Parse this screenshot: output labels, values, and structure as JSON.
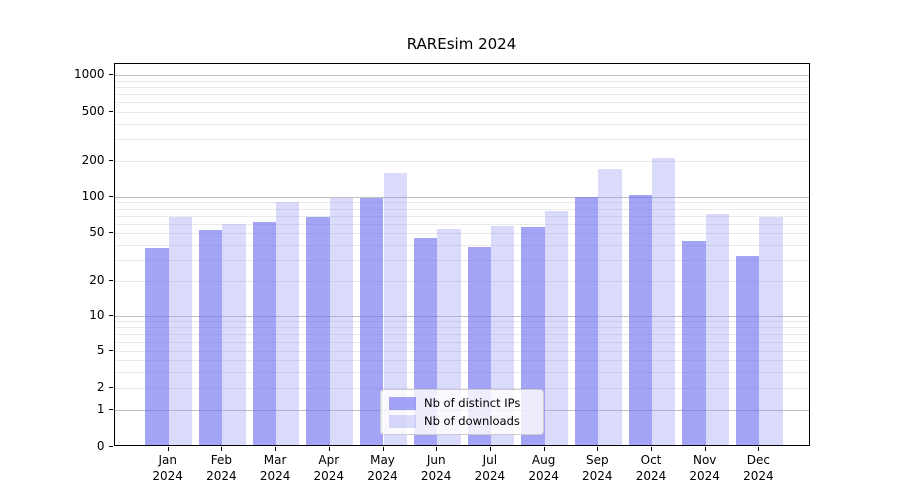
{
  "title": "RAREsim 2024",
  "chart_data": {
    "type": "bar",
    "title": "RAREsim 2024",
    "categories": [
      "Jan",
      "Feb",
      "Mar",
      "Apr",
      "May",
      "Jun",
      "Jul",
      "Aug",
      "Sep",
      "Oct",
      "Nov",
      "Dec"
    ],
    "category_year": "2024",
    "series": [
      {
        "name": "Nb of distinct IPs",
        "values": [
          36,
          51,
          59,
          66,
          94,
          44,
          37,
          54,
          97,
          100,
          41,
          31
        ],
        "color": "#6c6cf0",
        "alpha": 0.62
      },
      {
        "name": "Nb of downloads",
        "values": [
          66,
          57,
          87,
          95,
          153,
          52,
          55,
          73,
          165,
          205,
          69,
          66
        ],
        "color": "#9696f0",
        "alpha": 0.35
      }
    ],
    "yscale": "symlog",
    "yticks": [
      0,
      1,
      2,
      5,
      10,
      20,
      50,
      100,
      200,
      500,
      1000
    ],
    "ylim": [
      0,
      1200
    ],
    "xlabel": "",
    "ylabel": "",
    "grid": true,
    "legend_position": "lower center"
  }
}
